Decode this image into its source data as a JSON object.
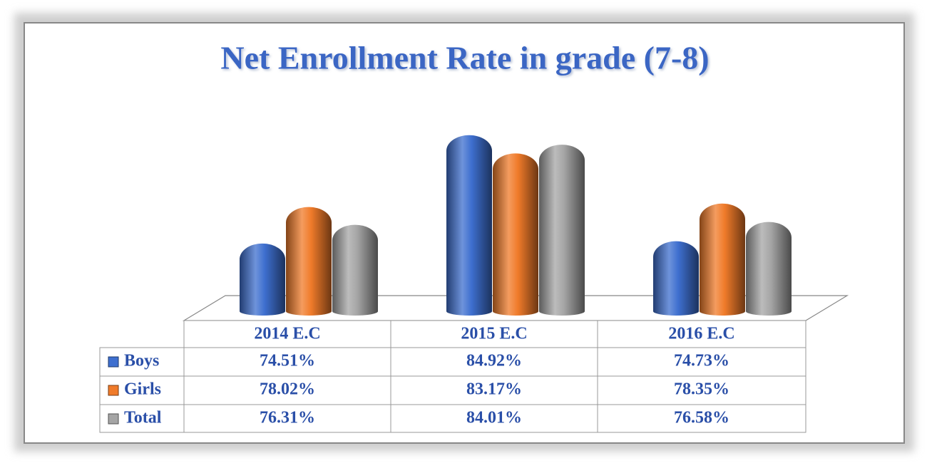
{
  "chart_data": {
    "type": "bar",
    "title": "Net Enrollment Rate in grade (7-8)",
    "categories": [
      "2014 E.C",
      "2015 E.C",
      "2016 E.C"
    ],
    "series": [
      {
        "name": "Boys",
        "color": "#3e6fcf",
        "values": [
          74.51,
          84.92,
          74.73
        ],
        "value_labels": [
          "74.51%",
          "84.92%",
          "74.73%"
        ]
      },
      {
        "name": "Girls",
        "color": "#f07b2a",
        "values": [
          78.02,
          83.17,
          78.35
        ],
        "value_labels": [
          "78.02%",
          "83.17%",
          "78.35%"
        ]
      },
      {
        "name": "Total",
        "color": "#a5a5a5",
        "values": [
          76.31,
          84.01,
          76.58
        ],
        "value_labels": [
          "76.31%",
          "84.01%",
          "76.58%"
        ]
      }
    ],
    "ylim": [
      68,
      86
    ]
  }
}
